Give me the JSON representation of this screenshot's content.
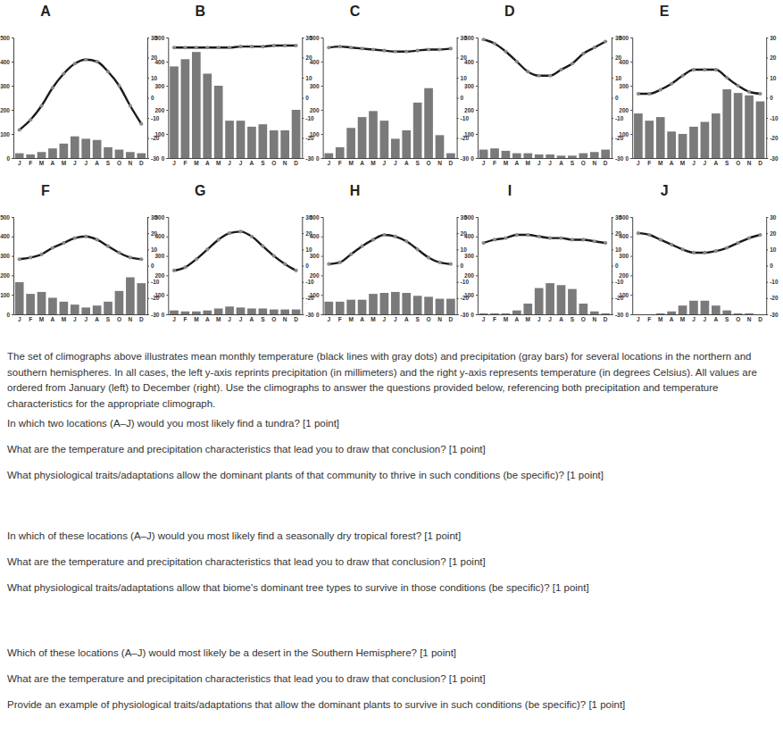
{
  "chart_data": [
    {
      "type": "bar",
      "title": "A",
      "categories": [
        "J",
        "F",
        "M",
        "A",
        "M",
        "J",
        "J",
        "A",
        "S",
        "O",
        "N",
        "D"
      ],
      "ylim": [
        0,
        500
      ],
      "yticks": [
        0,
        100,
        200,
        300,
        400,
        500
      ],
      "y2lim": [
        -30,
        30
      ],
      "y2ticks": [
        -30,
        -20,
        -10,
        0,
        10,
        20,
        30
      ],
      "series": [
        {
          "type": "bar",
          "color": "#7a7a7a",
          "values": [
            20,
            15,
            25,
            40,
            60,
            90,
            80,
            75,
            45,
            35,
            25,
            20
          ]
        },
        {
          "type": "line",
          "axis": "y2",
          "color": "#1a1a1a",
          "marker": "circle",
          "values": [
            -16,
            -11,
            -4,
            5,
            12,
            17,
            19,
            18,
            13,
            6,
            -4,
            -13
          ]
        }
      ]
    },
    {
      "type": "bar",
      "title": "B",
      "categories": [
        "J",
        "F",
        "M",
        "A",
        "M",
        "J",
        "J",
        "A",
        "S",
        "O",
        "N",
        "D"
      ],
      "ylim": [
        0,
        500
      ],
      "yticks": [
        0,
        100,
        200,
        300,
        400,
        500
      ],
      "y2lim": [
        -30,
        30
      ],
      "y2ticks": [
        -30,
        -20,
        -10,
        0,
        10,
        20,
        30
      ],
      "series": [
        {
          "type": "bar",
          "color": "#7a7a7a",
          "values": [
            380,
            410,
            440,
            350,
            300,
            155,
            155,
            130,
            140,
            115,
            115,
            200
          ]
        },
        {
          "type": "line",
          "axis": "y2",
          "color": "#1a1a1a",
          "marker": "circle",
          "values": [
            25,
            25,
            25,
            25,
            25,
            25,
            25.5,
            25.5,
            25.5,
            26,
            26,
            26
          ]
        }
      ]
    },
    {
      "type": "bar",
      "title": "C",
      "categories": [
        "J",
        "F",
        "M",
        "A",
        "M",
        "J",
        "J",
        "A",
        "S",
        "O",
        "N",
        "D"
      ],
      "ylim": [
        0,
        500
      ],
      "yticks": [
        0,
        100,
        200,
        300,
        400,
        500
      ],
      "y2lim": [
        -30,
        30
      ],
      "y2ticks": [
        -30,
        -20,
        -10,
        0,
        10,
        20,
        30
      ],
      "series": [
        {
          "type": "bar",
          "color": "#7a7a7a",
          "values": [
            20,
            45,
            125,
            170,
            195,
            155,
            80,
            115,
            230,
            290,
            95,
            20
          ]
        },
        {
          "type": "line",
          "axis": "y2",
          "color": "#1a1a1a",
          "marker": "circle",
          "values": [
            25,
            25.5,
            25,
            24.5,
            24,
            23.5,
            23,
            23,
            23.5,
            24,
            24,
            24.5
          ]
        }
      ]
    },
    {
      "type": "bar",
      "title": "D",
      "categories": [
        "J",
        "F",
        "M",
        "A",
        "M",
        "J",
        "J",
        "A",
        "S",
        "O",
        "N",
        "D"
      ],
      "ylim": [
        0,
        500
      ],
      "yticks": [
        0,
        100,
        200,
        300,
        400,
        500
      ],
      "y2lim": [
        -30,
        30
      ],
      "y2ticks": [
        -30,
        -20,
        -10,
        0,
        10,
        20,
        30
      ],
      "series": [
        {
          "type": "bar",
          "color": "#7a7a7a",
          "values": [
            35,
            40,
            30,
            20,
            20,
            15,
            15,
            10,
            10,
            20,
            25,
            35
          ]
        },
        {
          "type": "line",
          "axis": "y2",
          "color": "#1a1a1a",
          "marker": "circle",
          "values": [
            29,
            27,
            23,
            18,
            13,
            11,
            11,
            14,
            17,
            22,
            25,
            28
          ]
        }
      ]
    },
    {
      "type": "bar",
      "title": "E",
      "categories": [
        "J",
        "F",
        "M",
        "A",
        "M",
        "J",
        "J",
        "A",
        "S",
        "O",
        "N",
        "D"
      ],
      "ylim": [
        0,
        500
      ],
      "yticks": [
        0,
        100,
        200,
        300,
        400,
        500
      ],
      "y2lim": [
        -30,
        30
      ],
      "y2ticks": [
        -30,
        -20,
        -10,
        0,
        10,
        20,
        30
      ],
      "series": [
        {
          "type": "bar",
          "color": "#7a7a7a",
          "values": [
            185,
            155,
            170,
            110,
            100,
            130,
            150,
            185,
            285,
            270,
            260,
            235
          ]
        },
        {
          "type": "line",
          "axis": "y2",
          "color": "#1a1a1a",
          "marker": "circle",
          "values": [
            2,
            2,
            4,
            7,
            11,
            14,
            14,
            14,
            10,
            6,
            3,
            2
          ]
        }
      ]
    },
    {
      "type": "bar",
      "title": "F",
      "categories": [
        "J",
        "F",
        "M",
        "A",
        "M",
        "J",
        "J",
        "A",
        "S",
        "O",
        "N",
        "D"
      ],
      "ylim": [
        0,
        500
      ],
      "yticks": [
        0,
        100,
        200,
        300,
        400,
        500
      ],
      "y2lim": [
        -30,
        30
      ],
      "y2ticks": [
        -30,
        -20,
        -10,
        0,
        10,
        20,
        30
      ],
      "series": [
        {
          "type": "bar",
          "color": "#7a7a7a",
          "values": [
            165,
            105,
            115,
            85,
            65,
            50,
            35,
            45,
            65,
            120,
            190,
            160
          ]
        },
        {
          "type": "line",
          "axis": "y2",
          "color": "#1a1a1a",
          "marker": "circle",
          "values": [
            4,
            5,
            7,
            11,
            14,
            17,
            18,
            16,
            12,
            8,
            5,
            4
          ]
        }
      ]
    },
    {
      "type": "bar",
      "title": "G",
      "categories": [
        "J",
        "F",
        "M",
        "A",
        "M",
        "J",
        "J",
        "A",
        "S",
        "O",
        "N",
        "D"
      ],
      "ylim": [
        0,
        500
      ],
      "yticks": [
        0,
        100,
        200,
        300,
        400,
        500
      ],
      "y2lim": [
        -30,
        30
      ],
      "y2ticks": [
        -30,
        -20,
        -10,
        0,
        10,
        20,
        30
      ],
      "series": [
        {
          "type": "bar",
          "color": "#7a7a7a",
          "values": [
            20,
            15,
            15,
            20,
            30,
            40,
            35,
            30,
            30,
            25,
            25,
            25
          ]
        },
        {
          "type": "line",
          "axis": "y2",
          "color": "#1a1a1a",
          "marker": "circle",
          "values": [
            -3,
            -1,
            4,
            10,
            16,
            20,
            21,
            18,
            12,
            6,
            1,
            -3
          ]
        }
      ]
    },
    {
      "type": "bar",
      "title": "H",
      "categories": [
        "J",
        "F",
        "M",
        "A",
        "M",
        "J",
        "J",
        "A",
        "S",
        "O",
        "N",
        "D"
      ],
      "ylim": [
        0,
        500
      ],
      "yticks": [
        0,
        100,
        200,
        300,
        400,
        500
      ],
      "y2lim": [
        -30,
        30
      ],
      "y2ticks": [
        -30,
        -20,
        -10,
        0,
        10,
        20,
        30
      ],
      "series": [
        {
          "type": "bar",
          "color": "#7a7a7a",
          "values": [
            65,
            65,
            75,
            75,
            105,
            110,
            115,
            110,
            95,
            90,
            80,
            80
          ]
        },
        {
          "type": "line",
          "axis": "y2",
          "color": "#1a1a1a",
          "marker": "circle",
          "values": [
            1,
            2,
            7,
            12,
            16,
            19,
            18,
            15,
            10,
            5,
            2,
            1
          ]
        }
      ]
    },
    {
      "type": "bar",
      "title": "I",
      "categories": [
        "J",
        "F",
        "M",
        "A",
        "M",
        "J",
        "J",
        "A",
        "S",
        "O",
        "N",
        "D"
      ],
      "ylim": [
        0,
        500
      ],
      "yticks": [
        0,
        100,
        200,
        300,
        400,
        500
      ],
      "y2lim": [
        -30,
        30
      ],
      "y2ticks": [
        -30,
        -20,
        -10,
        0,
        10,
        20,
        30
      ],
      "series": [
        {
          "type": "bar",
          "color": "#7a7a7a",
          "values": [
            5,
            5,
            5,
            20,
            55,
            135,
            160,
            150,
            130,
            55,
            15,
            5
          ]
        },
        {
          "type": "line",
          "axis": "y2",
          "color": "#1a1a1a",
          "marker": "circle",
          "values": [
            14,
            16,
            17,
            19,
            19,
            18,
            17,
            17,
            16,
            16,
            15,
            14
          ]
        }
      ]
    },
    {
      "type": "bar",
      "title": "J",
      "categories": [
        "J",
        "F",
        "M",
        "A",
        "M",
        "J",
        "J",
        "A",
        "S",
        "O",
        "N",
        "D"
      ],
      "ylim": [
        0,
        500
      ],
      "yticks": [
        0,
        100,
        200,
        300,
        400,
        500
      ],
      "y2lim": [
        -30,
        30
      ],
      "y2ticks": [
        -30,
        -20,
        -10,
        0,
        10,
        20,
        30
      ],
      "series": [
        {
          "type": "bar",
          "color": "#7a7a7a",
          "values": [
            0,
            0,
            5,
            15,
            45,
            70,
            70,
            45,
            20,
            5,
            5,
            0
          ]
        },
        {
          "type": "line",
          "axis": "y2",
          "color": "#1a1a1a",
          "marker": "circle",
          "values": [
            20,
            19,
            16,
            13,
            10,
            8,
            8,
            9,
            11,
            14,
            17,
            19
          ]
        }
      ]
    }
  ],
  "document": {
    "intro": "The set of climographs above illustrates mean monthly temperature (black lines with gray dots) and precipitation (gray bars) for several locations in the northern and southern hemispheres. In all cases, the left y-axis reprints precipitation (in millimeters) and the right y-axis represents temperature (in degrees Celsius). All values are ordered from January (left) to December (right). Use the climographs to answer the questions provided below, referencing both precipitation and temperature characteristics for the appropriate climograph.",
    "questions": [
      [
        "In which two locations (A–J) would you most likely find a tundra? [1 point]",
        "What are the temperature and precipitation characteristics that lead you to draw that conclusion? [1 point]",
        "What physiological traits/adaptations allow the dominant plants of that community to thrive in such conditions (be specific)? [1 point]"
      ],
      [
        "In which of these locations (A–J) would you most likely find a seasonally dry tropical forest? [1 point]",
        "What are the temperature and precipitation characteristics that lead you to draw that conclusion? [1 point]",
        "What physiological traits/adaptations allow that biome's dominant tree types to survive in those conditions (be specific)? [1 point]"
      ],
      [
        "Which of these locations (A–J) would most likely be a desert in the Southern Hemisphere? [1 point]",
        "What are the temperature and precipitation characteristics that lead you to draw that conclusion? [1 point]",
        "Provide an example of physiological traits/adaptations that allow the dominant plants to survive in such conditions (be specific)? [1 point]"
      ]
    ]
  }
}
